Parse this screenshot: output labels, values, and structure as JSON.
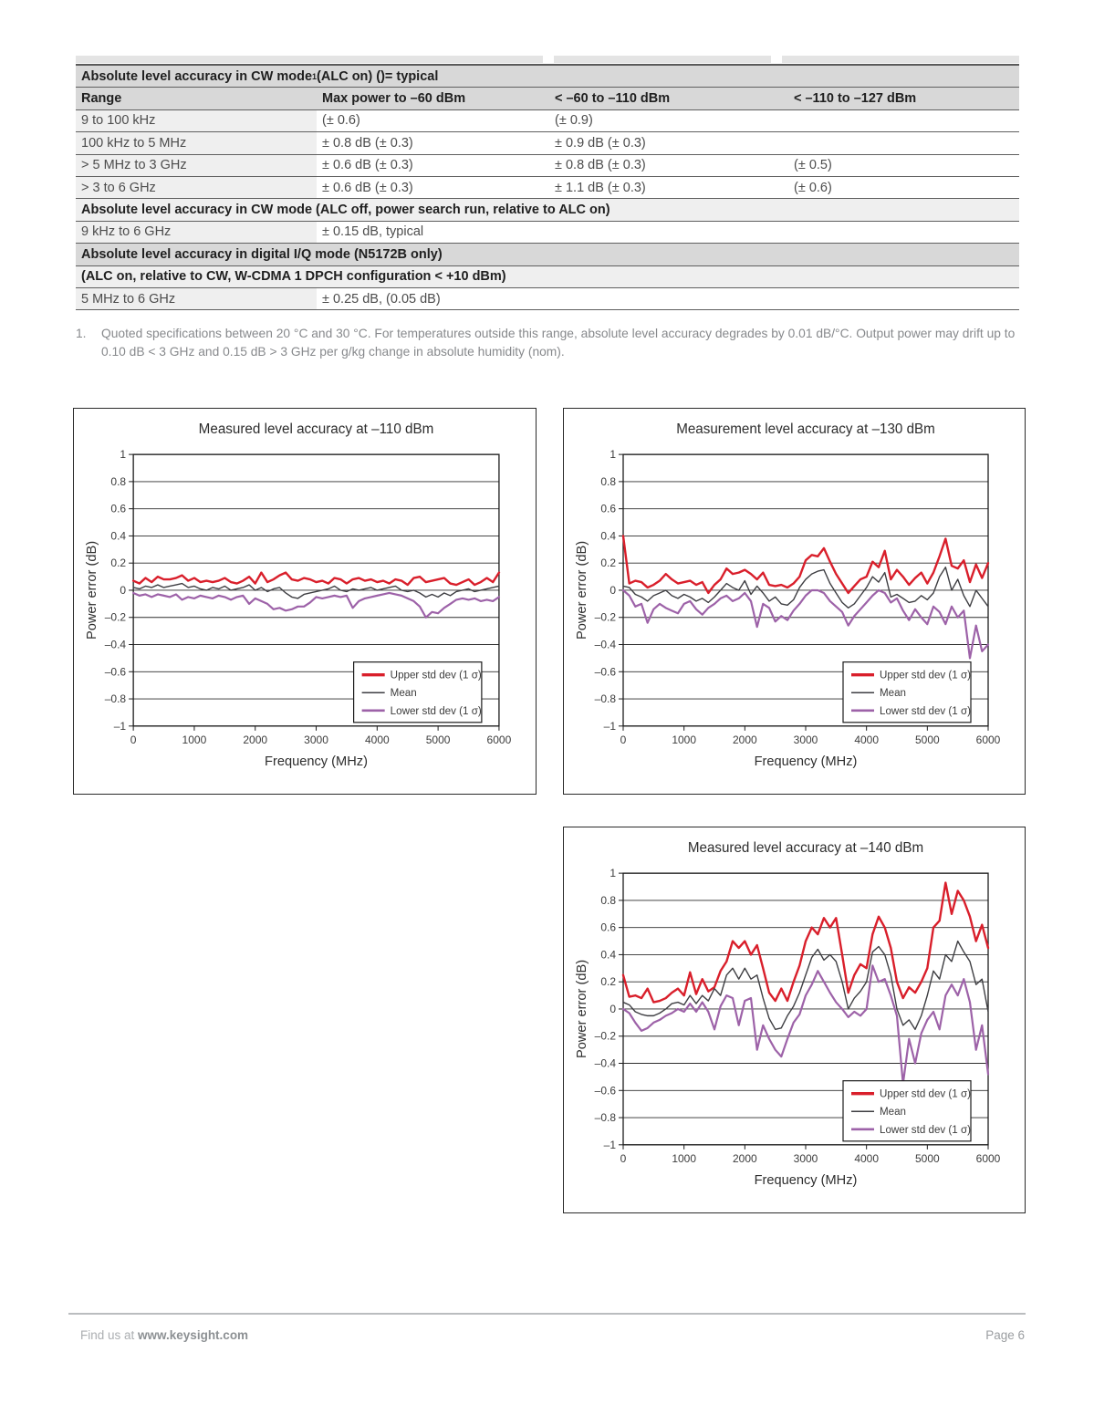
{
  "table": {
    "rows": [
      {
        "type": "section",
        "pre": "Absolute level accuracy in CW mode",
        "sup": "1",
        "post": " (ALC on) ()= typical"
      },
      {
        "type": "columns",
        "cells": [
          "Range",
          "Max power to –60 dBm",
          "< –60 to –110 dBm",
          "< –110 to –127 dBm"
        ]
      },
      {
        "type": "data",
        "cells": [
          "9 to 100 kHz",
          "(± 0.6)",
          "(± 0.9)",
          ""
        ]
      },
      {
        "type": "data",
        "cells": [
          "100 kHz to 5 MHz",
          "± 0.8 dB (± 0.3)",
          "± 0.9 dB (± 0.3)",
          ""
        ]
      },
      {
        "type": "data",
        "cells": [
          "> 5 MHz to 3 GHz",
          "± 0.6 dB (± 0.3)",
          "± 0.8 dB (± 0.3)",
          "(± 0.5)"
        ]
      },
      {
        "type": "data",
        "cells": [
          "> 3 to 6 GHz",
          "± 0.6 dB (± 0.3)",
          "± 1.1 dB (± 0.3)",
          "(± 0.6)"
        ]
      },
      {
        "type": "subsection",
        "pre": "Absolute level accuracy in CW mode (ALC off, power search run, relative to ALC on)"
      },
      {
        "type": "data",
        "cells": [
          "9 kHz to 6 GHz",
          "± 0.15 dB, typical",
          "",
          ""
        ]
      },
      {
        "type": "section",
        "pre": "Absolute level accuracy in digital I/Q mode (N5172B only)"
      },
      {
        "type": "subsection",
        "pre": "(ALC on, relative to CW, W-CDMA 1 DPCH configuration < +10 dBm)"
      },
      {
        "type": "data",
        "cells": [
          "5 MHz to 6 GHz",
          "± 0.25 dB, (0.05 dB)",
          "",
          ""
        ]
      }
    ]
  },
  "footnote": {
    "number": "1.",
    "text": "Quoted specifications between 20 °C and 30 °C. For temperatures outside this range, absolute level accuracy degrades by 0.01 dB/°C. Output power may drift up to  0.10 dB < 3 GHz and  0.15 dB > 3 GHz per g/kg change in absolute humidity (nom)."
  },
  "chart_data": [
    {
      "type": "line",
      "title": "Measured level accuracy at –110 dBm",
      "xlabel": "Frequency (MHz)",
      "ylabel": "Power error (dB)",
      "xlim": [
        0,
        6000
      ],
      "ylim": [
        -1,
        1
      ],
      "xticks": [
        0,
        1000,
        2000,
        3000,
        4000,
        5000,
        6000
      ],
      "yticks": [
        1,
        0.8,
        0.6,
        0.4,
        0.2,
        0,
        -0.2,
        -0.4,
        -0.6,
        -0.8,
        -1
      ],
      "x_start": 0,
      "x_step": 100,
      "x_unit": "MHz",
      "grid": "horizontal",
      "legend_position": "bottom-right",
      "series": [
        {
          "name": "Upper std dev (1 σ)",
          "color": "#d91f2b",
          "width": 2.4,
          "values": [
            0.07,
            0.05,
            0.09,
            0.06,
            0.1,
            0.08,
            0.08,
            0.09,
            0.11,
            0.07,
            0.09,
            0.06,
            0.07,
            0.06,
            0.07,
            0.09,
            0.06,
            0.05,
            0.07,
            0.1,
            0.05,
            0.13,
            0.06,
            0.08,
            0.11,
            0.13,
            0.08,
            0.07,
            0.09,
            0.08,
            0.06,
            0.07,
            0.05,
            0.09,
            0.08,
            0.05,
            0.08,
            0.09,
            0.07,
            0.08,
            0.06,
            0.07,
            0.05,
            0.08,
            0.07,
            0.04,
            0.09,
            0.1,
            0.06,
            0.07,
            0.08,
            0.09,
            0.05,
            0.04,
            0.06,
            0.08,
            0.04,
            0.06,
            0.09,
            0.06,
            0.13
          ]
        },
        {
          "name": "Mean",
          "color": "#3e3e42",
          "width": 1.4,
          "values": [
            0.02,
            0.01,
            0.03,
            0.02,
            0.04,
            0.02,
            0.03,
            0.04,
            0.05,
            0.02,
            0.03,
            0.01,
            0.0,
            0.02,
            0.01,
            0.03,
            0.0,
            0.01,
            0.02,
            0.04,
            0.0,
            0.02,
            -0.01,
            0.01,
            0.02,
            -0.02,
            -0.05,
            -0.06,
            -0.03,
            -0.02,
            -0.01,
            0.0,
            0.01,
            0.03,
            0.0,
            -0.01,
            0.01,
            0.0,
            0.01,
            0.02,
            0.0,
            0.01,
            0.02,
            0.03,
            0.0,
            -0.01,
            0.0,
            -0.02,
            -0.05,
            -0.03,
            -0.05,
            -0.02,
            -0.04,
            -0.01,
            0.0,
            0.01,
            -0.01,
            0.0,
            0.01,
            0.02,
            0.03
          ]
        },
        {
          "name": "Lower std dev (1 σ)",
          "color": "#9d62a8",
          "width": 2.2,
          "values": [
            -0.02,
            -0.04,
            -0.03,
            -0.05,
            -0.03,
            -0.04,
            -0.05,
            -0.03,
            -0.07,
            -0.05,
            -0.06,
            -0.04,
            -0.05,
            -0.06,
            -0.04,
            -0.05,
            -0.07,
            -0.05,
            -0.04,
            -0.1,
            -0.06,
            -0.08,
            -0.1,
            -0.14,
            -0.13,
            -0.15,
            -0.14,
            -0.12,
            -0.12,
            -0.09,
            -0.05,
            -0.06,
            -0.05,
            -0.04,
            -0.05,
            -0.04,
            -0.13,
            -0.08,
            -0.06,
            -0.05,
            -0.04,
            -0.03,
            -0.02,
            -0.03,
            -0.04,
            -0.06,
            -0.08,
            -0.12,
            -0.2,
            -0.16,
            -0.17,
            -0.13,
            -0.1,
            -0.07,
            -0.06,
            -0.07,
            -0.06,
            -0.08,
            -0.07,
            -0.08,
            -0.05
          ]
        }
      ]
    },
    {
      "type": "line",
      "title": "Measurement level accuracy at –130 dBm",
      "xlabel": "Frequency (MHz)",
      "ylabel": "Power error (dB)",
      "xlim": [
        0,
        6000
      ],
      "ylim": [
        -1,
        1
      ],
      "xticks": [
        0,
        1000,
        2000,
        3000,
        4000,
        5000,
        6000
      ],
      "yticks": [
        1,
        0.8,
        0.6,
        0.4,
        0.2,
        0,
        -0.2,
        -0.4,
        -0.6,
        -0.8,
        -1
      ],
      "x_start": 0,
      "x_step": 100,
      "x_unit": "MHz",
      "grid": "horizontal",
      "legend_position": "bottom-right",
      "series": [
        {
          "name": "Upper std dev (1 σ)",
          "color": "#d91f2b",
          "width": 2.4,
          "values": [
            0.4,
            0.05,
            0.07,
            0.06,
            0.02,
            0.04,
            0.07,
            0.12,
            0.08,
            0.05,
            0.06,
            0.07,
            0.04,
            0.06,
            -0.02,
            0.04,
            0.08,
            0.16,
            0.12,
            0.13,
            0.15,
            0.12,
            0.08,
            0.13,
            0.04,
            0.03,
            0.04,
            0.02,
            0.05,
            0.1,
            0.22,
            0.26,
            0.25,
            0.31,
            0.21,
            0.12,
            0.05,
            -0.02,
            0.03,
            0.08,
            0.1,
            0.21,
            0.17,
            0.29,
            0.08,
            0.15,
            0.1,
            0.04,
            0.09,
            0.13,
            0.05,
            0.13,
            0.25,
            0.38,
            0.18,
            0.16,
            0.22,
            0.06,
            0.19,
            0.09,
            0.2
          ]
        },
        {
          "name": "Mean",
          "color": "#3e3e42",
          "width": 1.4,
          "values": [
            0.03,
            0.02,
            -0.03,
            -0.05,
            -0.08,
            -0.04,
            -0.02,
            0.0,
            -0.04,
            -0.06,
            -0.03,
            -0.05,
            -0.08,
            -0.06,
            -0.09,
            -0.05,
            0.0,
            0.05,
            0.02,
            0.0,
            0.07,
            -0.03,
            0.03,
            -0.02,
            -0.08,
            -0.05,
            -0.1,
            -0.11,
            -0.07,
            0.02,
            0.08,
            0.12,
            0.14,
            0.15,
            0.05,
            -0.02,
            -0.09,
            -0.13,
            -0.1,
            -0.04,
            0.02,
            0.1,
            0.06,
            0.13,
            -0.05,
            -0.03,
            -0.06,
            -0.09,
            -0.08,
            -0.04,
            -0.07,
            -0.02,
            0.1,
            0.17,
            0.0,
            0.08,
            -0.04,
            -0.12,
            0.0,
            -0.06,
            -0.12
          ]
        },
        {
          "name": "Lower std dev (1 σ)",
          "color": "#9d62a8",
          "width": 2.2,
          "values": [
            0.0,
            -0.04,
            -0.12,
            -0.1,
            -0.24,
            -0.14,
            -0.1,
            -0.13,
            -0.15,
            -0.17,
            -0.1,
            -0.08,
            -0.14,
            -0.18,
            -0.13,
            -0.1,
            -0.06,
            -0.04,
            -0.08,
            -0.06,
            -0.02,
            -0.08,
            -0.27,
            -0.1,
            -0.13,
            -0.23,
            -0.19,
            -0.22,
            -0.15,
            -0.1,
            -0.04,
            0.0,
            0.0,
            -0.02,
            -0.08,
            -0.12,
            -0.16,
            -0.26,
            -0.19,
            -0.14,
            -0.09,
            -0.04,
            0.0,
            -0.02,
            -0.09,
            -0.06,
            -0.15,
            -0.22,
            -0.14,
            -0.2,
            -0.25,
            -0.12,
            -0.16,
            -0.25,
            -0.12,
            -0.2,
            -0.15,
            -0.5,
            -0.26,
            -0.45,
            -0.4
          ]
        }
      ]
    },
    {
      "type": "line",
      "title": "Measured level accuracy at  –140 dBm",
      "xlabel": "Frequency (MHz)",
      "ylabel": "Power error (dB)",
      "xlim": [
        0,
        6000
      ],
      "ylim": [
        -1,
        1
      ],
      "xticks": [
        0,
        1000,
        2000,
        3000,
        4000,
        5000,
        6000
      ],
      "yticks": [
        1,
        0.8,
        0.6,
        0.4,
        0.2,
        0,
        -0.2,
        -0.4,
        -0.6,
        -0.8,
        -1
      ],
      "x_start": 0,
      "x_step": 100,
      "x_unit": "MHz",
      "grid": "horizontal",
      "legend_position": "bottom-right",
      "series": [
        {
          "name": "Upper std dev (1 σ)",
          "color": "#d91f2b",
          "width": 2.4,
          "values": [
            0.25,
            0.09,
            0.1,
            0.08,
            0.15,
            0.05,
            0.06,
            0.08,
            0.12,
            0.15,
            0.1,
            0.27,
            0.11,
            0.22,
            0.13,
            0.16,
            0.28,
            0.35,
            0.5,
            0.45,
            0.5,
            0.4,
            0.47,
            0.3,
            0.12,
            0.06,
            0.15,
            0.06,
            0.2,
            0.32,
            0.5,
            0.6,
            0.55,
            0.67,
            0.6,
            0.67,
            0.4,
            0.12,
            0.25,
            0.33,
            0.3,
            0.55,
            0.68,
            0.6,
            0.45,
            0.2,
            0.08,
            0.16,
            0.12,
            0.2,
            0.3,
            0.6,
            0.65,
            0.93,
            0.7,
            0.87,
            0.8,
            0.68,
            0.5,
            0.62,
            0.45
          ]
        },
        {
          "name": "Mean",
          "color": "#3e3e42",
          "width": 1.4,
          "values": [
            0.05,
            0.03,
            -0.02,
            -0.04,
            -0.05,
            -0.05,
            -0.03,
            0.0,
            0.04,
            0.05,
            0.03,
            0.1,
            0.04,
            0.1,
            0.06,
            0.15,
            0.1,
            0.25,
            0.3,
            0.22,
            0.3,
            0.22,
            0.25,
            0.08,
            -0.07,
            -0.15,
            -0.14,
            -0.05,
            0.02,
            0.12,
            0.25,
            0.38,
            0.44,
            0.36,
            0.4,
            0.35,
            0.2,
            0.0,
            0.08,
            0.13,
            0.2,
            0.42,
            0.46,
            0.4,
            0.25,
            0.0,
            -0.12,
            -0.08,
            -0.15,
            -0.05,
            0.1,
            0.28,
            0.22,
            0.4,
            0.35,
            0.5,
            0.42,
            0.35,
            0.18,
            0.22,
            -0.02
          ]
        },
        {
          "name": "Lower std dev (1 σ)",
          "color": "#9d62a8",
          "width": 2.2,
          "values": [
            0.0,
            -0.03,
            -0.1,
            -0.16,
            -0.14,
            -0.1,
            -0.08,
            -0.05,
            -0.03,
            0.0,
            -0.02,
            0.04,
            -0.02,
            0.05,
            -0.02,
            -0.15,
            0.02,
            0.1,
            0.08,
            -0.12,
            0.06,
            0.08,
            -0.3,
            -0.12,
            -0.22,
            -0.3,
            -0.35,
            -0.22,
            -0.1,
            -0.04,
            0.1,
            0.18,
            0.28,
            0.2,
            0.12,
            0.05,
            0.0,
            -0.06,
            -0.02,
            -0.05,
            0.0,
            0.32,
            0.2,
            0.22,
            0.1,
            -0.05,
            -0.55,
            -0.22,
            -0.4,
            -0.18,
            -0.08,
            -0.02,
            -0.15,
            0.1,
            0.18,
            0.1,
            0.22,
            0.05,
            -0.3,
            -0.12,
            -0.48
          ]
        }
      ]
    }
  ],
  "footer": {
    "find_us": "Find us at ",
    "url": "www.keysight.com",
    "page": "Page 6"
  }
}
